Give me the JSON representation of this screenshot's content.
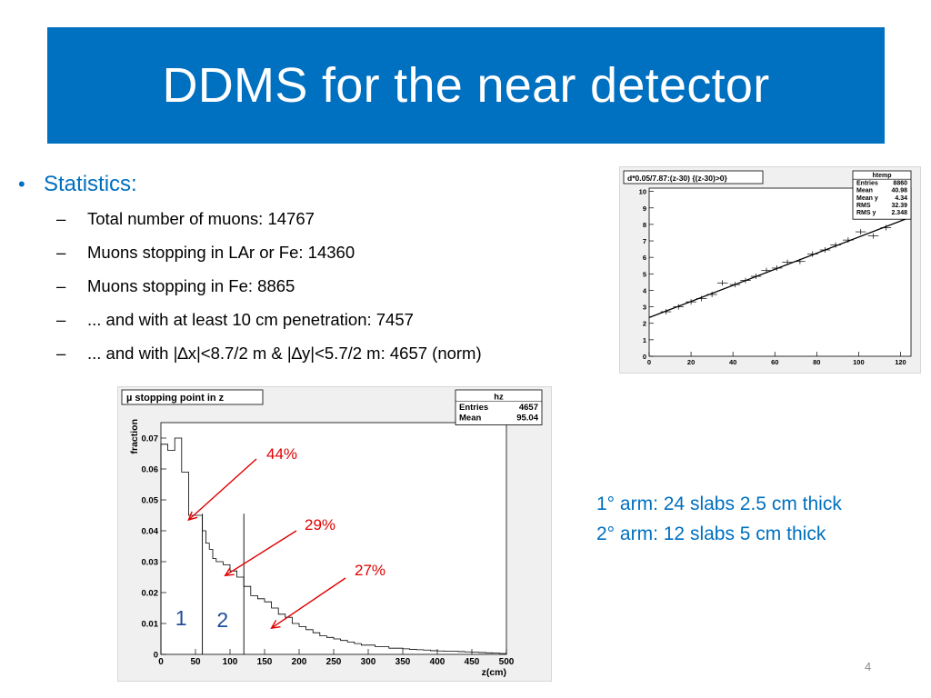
{
  "slide": {
    "title": "DDMS for the near detector",
    "number": "4"
  },
  "bullets": {
    "main": "Statistics:",
    "items": [
      "Total number of muons: 14767",
      "Muons stopping in LAr or Fe: 14360",
      "Muons stopping in Fe: 8865",
      "... and with at least 10 cm penetration: 7457",
      "... and with |∆x|<8.7/2 m & |∆y|<5.7/2 m: 4657 (norm)"
    ]
  },
  "note": {
    "line1": "1° arm: 24 slabs 2.5 cm thick",
    "line2": "2° arm: 12 slabs 5 cm thick"
  },
  "colors": {
    "title_bg": "#0070c0",
    "accent": "#0070c0",
    "annotation": "#e00000"
  },
  "chart_data": [
    {
      "type": "line",
      "title": "d*0.05/7.87:(z-30) {(z-30)>0}",
      "stats": {
        "name": "htemp",
        "rows": [
          {
            "label": "Entries",
            "value": "8860"
          },
          {
            "label": "Mean",
            "value": "40.98"
          },
          {
            "label": "Mean y",
            "value": "4.34"
          },
          {
            "label": "RMS",
            "value": "32.39"
          },
          {
            "label": "RMS y",
            "value": "2.348"
          }
        ]
      },
      "xlim": [
        0,
        125
      ],
      "ylim": [
        0,
        10.2
      ],
      "xticks": [
        0,
        20,
        40,
        60,
        80,
        100,
        120
      ],
      "yticks": [
        0,
        1,
        2,
        3,
        4,
        5,
        6,
        7,
        8,
        9,
        10
      ],
      "fit": {
        "x": [
          0,
          125
        ],
        "y": [
          2.35,
          8.45
        ]
      },
      "points": [
        {
          "x": 8,
          "y": 2.7
        },
        {
          "x": 14,
          "y": 3.0
        },
        {
          "x": 20,
          "y": 3.3
        },
        {
          "x": 25,
          "y": 3.5
        },
        {
          "x": 30,
          "y": 3.75
        },
        {
          "x": 35,
          "y": 4.45
        },
        {
          "x": 41,
          "y": 4.35
        },
        {
          "x": 46,
          "y": 4.6
        },
        {
          "x": 51,
          "y": 4.85
        },
        {
          "x": 56,
          "y": 5.2
        },
        {
          "x": 61,
          "y": 5.35
        },
        {
          "x": 66,
          "y": 5.7
        },
        {
          "x": 72,
          "y": 5.75
        },
        {
          "x": 78,
          "y": 6.2
        },
        {
          "x": 84,
          "y": 6.45
        },
        {
          "x": 89,
          "y": 6.75
        },
        {
          "x": 95,
          "y": 7.05
        },
        {
          "x": 101,
          "y": 7.55
        },
        {
          "x": 107,
          "y": 7.3
        },
        {
          "x": 113,
          "y": 7.8
        }
      ]
    },
    {
      "type": "area",
      "title": "µ stopping point in z",
      "ylabel": "fraction",
      "xlabel": "z(cm)",
      "stats": {
        "name": "hz",
        "rows": [
          {
            "label": "Entries",
            "value": "4657"
          },
          {
            "label": "Mean",
            "value": "95.04"
          }
        ]
      },
      "xlim": [
        0,
        500
      ],
      "ylim": [
        0,
        0.075
      ],
      "xticks": [
        0,
        50,
        100,
        150,
        200,
        250,
        300,
        350,
        400,
        450,
        500
      ],
      "yticks": [
        0,
        0.01,
        0.02,
        0.03,
        0.04,
        0.05,
        0.06,
        0.07
      ],
      "ytick_labels": [
        "0",
        "0.01",
        "0.02",
        "0.03",
        "0.04",
        "0.05",
        "0.06",
        "0.07"
      ],
      "bin_edges": [
        0,
        10,
        20,
        30,
        40,
        50,
        60,
        65,
        70,
        75,
        80,
        90,
        100,
        110,
        120,
        130,
        140,
        150,
        160,
        170,
        180,
        190,
        200,
        210,
        220,
        230,
        240,
        250,
        260,
        270,
        280,
        290,
        300,
        310,
        320,
        330,
        340,
        350,
        360,
        370,
        380,
        390,
        400,
        410,
        420,
        430,
        440,
        450,
        460,
        470,
        480,
        490,
        500
      ],
      "values": [
        0.068,
        0.066,
        0.07,
        0.059,
        0.045,
        0.045,
        0.04,
        0.036,
        0.034,
        0.031,
        0.03,
        0.029,
        0.027,
        0.025,
        0.022,
        0.019,
        0.018,
        0.017,
        0.015,
        0.013,
        0.012,
        0.01,
        0.009,
        0.008,
        0.007,
        0.006,
        0.0055,
        0.005,
        0.0045,
        0.004,
        0.0035,
        0.003,
        0.003,
        0.0025,
        0.0025,
        0.002,
        0.002,
        0.0018,
        0.0016,
        0.0015,
        0.0014,
        0.0012,
        0.0011,
        0.001,
        0.001,
        0.0009,
        0.0008,
        0.0007,
        0.0006,
        0.0005,
        0.0004,
        0.0003
      ],
      "dividers": [
        60,
        120
      ],
      "annotations": [
        {
          "text": "44%",
          "arrow_to": [
            40,
            0.0435
          ]
        },
        {
          "text": "29%",
          "arrow_to": [
            93,
            0.0255
          ]
        },
        {
          "text": "27%",
          "arrow_to": [
            160,
            0.0085
          ]
        }
      ],
      "region_labels": [
        "1",
        "2"
      ]
    }
  ]
}
